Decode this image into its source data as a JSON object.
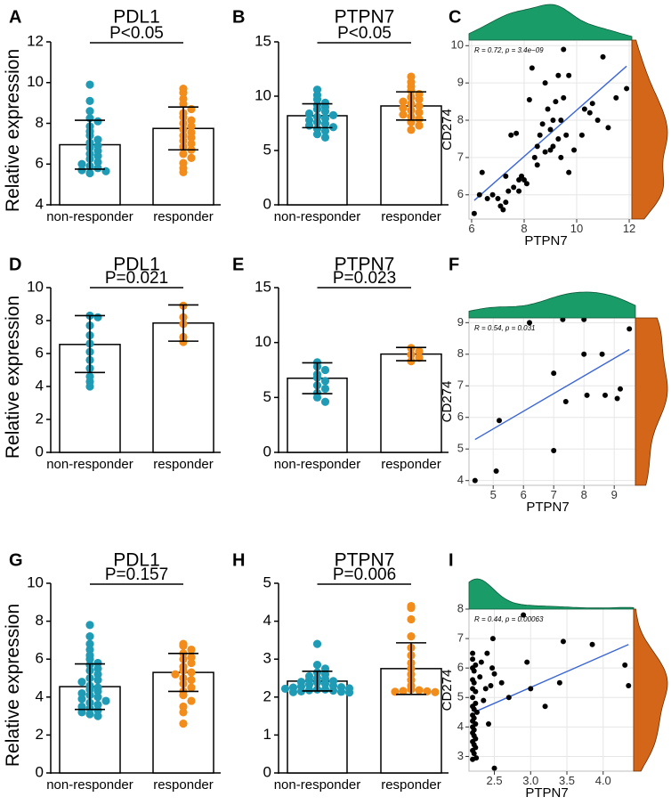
{
  "figure": {
    "colors": {
      "non_responder": "#1f9bb5",
      "responder": "#f28c1b",
      "density_top": "#1a9c69",
      "density_right": "#d4661a",
      "regression_line": "#3a66d6",
      "scatter_point": "#000000",
      "grid": "#e6e6e6"
    },
    "y_axis_label": "Relative expression"
  },
  "chart_data": [
    {
      "panel": "A",
      "type": "bar",
      "title": "PDL1",
      "pvalue": "P<0.05",
      "categories": [
        "non-responder",
        "responder"
      ],
      "ylabel": "Relative expression",
      "ylim": [
        4,
        12
      ],
      "yticks": [
        4,
        6,
        8,
        10,
        12
      ],
      "means": [
        6.95,
        7.75
      ],
      "sd_upper": [
        8.15,
        8.8
      ],
      "sd_lower": [
        5.75,
        6.7
      ],
      "points": [
        [
          9.9,
          9.1,
          8.6,
          8.25,
          8.1,
          7.85,
          7.6,
          7.4,
          7.2,
          7.05,
          6.9,
          6.8,
          6.65,
          6.5,
          6.4,
          6.25,
          6.1,
          6.0,
          5.9,
          5.8,
          5.7,
          5.65,
          5.55
        ],
        [
          9.7,
          9.5,
          9.2,
          8.95,
          8.7,
          8.5,
          8.3,
          8.15,
          8.0,
          7.85,
          7.7,
          7.55,
          7.4,
          7.3,
          7.15,
          7.0,
          6.85,
          6.7,
          6.5,
          6.3,
          6.05,
          5.8,
          5.6
        ]
      ]
    },
    {
      "panel": "B",
      "type": "bar",
      "title": "PTPN7",
      "pvalue": "P<0.05",
      "categories": [
        "non-responder",
        "responder"
      ],
      "ylabel": "",
      "ylim": [
        0,
        15
      ],
      "yticks": [
        0,
        5,
        10,
        15
      ],
      "means": [
        8.2,
        9.1
      ],
      "sd_upper": [
        9.3,
        10.4
      ],
      "sd_lower": [
        7.1,
        7.8
      ],
      "points": [
        [
          10.6,
          10.1,
          9.7,
          9.4,
          9.2,
          9.0,
          8.8,
          8.6,
          8.4,
          8.25,
          8.1,
          7.95,
          7.8,
          7.6,
          7.45,
          7.3,
          7.15,
          7.0,
          6.8,
          6.5,
          6.2
        ],
        [
          11.8,
          11.3,
          10.9,
          10.5,
          10.2,
          9.9,
          9.7,
          9.5,
          9.3,
          9.1,
          8.9,
          8.7,
          8.5,
          8.3,
          8.1,
          7.9,
          7.6,
          7.3,
          6.9
        ]
      ]
    },
    {
      "panel": "C",
      "type": "scatter",
      "xlabel": "PTPN7",
      "ylabel": "CD274",
      "annotation": "R = 0.72, p = 3.4e−09",
      "xlim": [
        5.9,
        12.1
      ],
      "ylim": [
        5.35,
        10.15
      ],
      "xticks": [
        6,
        8,
        10,
        12
      ],
      "yticks": [
        6,
        7,
        8,
        9,
        10
      ],
      "line": {
        "x": [
          6.1,
          11.9
        ],
        "y": [
          5.85,
          9.45
        ]
      },
      "points": [
        [
          6.1,
          5.5
        ],
        [
          6.3,
          6.0
        ],
        [
          6.4,
          6.6
        ],
        [
          6.6,
          5.9
        ],
        [
          6.8,
          6.0
        ],
        [
          7.0,
          5.9
        ],
        [
          7.1,
          5.7
        ],
        [
          7.2,
          5.6
        ],
        [
          7.3,
          6.5
        ],
        [
          7.3,
          5.8
        ],
        [
          7.4,
          6.1
        ],
        [
          7.5,
          7.6
        ],
        [
          7.6,
          6.2
        ],
        [
          7.7,
          7.65
        ],
        [
          7.8,
          6.4
        ],
        [
          7.8,
          6.1
        ],
        [
          7.9,
          6.5
        ],
        [
          8.0,
          6.4
        ],
        [
          8.1,
          6.3
        ],
        [
          8.2,
          8.55
        ],
        [
          8.3,
          9.4
        ],
        [
          8.4,
          7.0
        ],
        [
          8.5,
          7.3
        ],
        [
          8.5,
          6.8
        ],
        [
          8.6,
          7.6
        ],
        [
          8.7,
          7.9
        ],
        [
          8.8,
          7.15
        ],
        [
          8.8,
          9.0
        ],
        [
          8.9,
          8.3
        ],
        [
          9.0,
          7.2
        ],
        [
          9.0,
          7.75
        ],
        [
          9.1,
          8.0
        ],
        [
          9.1,
          7.3
        ],
        [
          9.2,
          8.5
        ],
        [
          9.3,
          9.2
        ],
        [
          9.3,
          7.5
        ],
        [
          9.4,
          8.0
        ],
        [
          9.4,
          7.0
        ],
        [
          9.5,
          9.9
        ],
        [
          9.5,
          8.6
        ],
        [
          9.6,
          7.6
        ],
        [
          9.7,
          9.2
        ],
        [
          9.7,
          6.6
        ],
        [
          9.9,
          7.2
        ],
        [
          10.2,
          7.6
        ],
        [
          10.3,
          8.3
        ],
        [
          10.5,
          8.2
        ],
        [
          10.6,
          8.45
        ],
        [
          10.8,
          8.0
        ],
        [
          11.0,
          9.7
        ],
        [
          11.2,
          7.8
        ],
        [
          11.5,
          8.6
        ],
        [
          11.9,
          8.85
        ]
      ]
    },
    {
      "panel": "D",
      "type": "bar",
      "title": "PDL1",
      "pvalue": "P=0.021",
      "categories": [
        "non-responder",
        "responder"
      ],
      "ylabel": "Relative expression",
      "ylim": [
        0,
        10
      ],
      "yticks": [
        0,
        2,
        4,
        6,
        8,
        10
      ],
      "means": [
        6.55,
        7.85
      ],
      "sd_upper": [
        8.3,
        8.95
      ],
      "sd_lower": [
        4.85,
        6.75
      ],
      "points": [
        [
          8.3,
          8.2,
          7.7,
          7.1,
          6.6,
          6.1,
          5.6,
          5.1,
          4.6,
          4.3,
          4.0
        ],
        [
          8.9,
          8.2,
          7.8,
          7.0,
          6.7
        ]
      ]
    },
    {
      "panel": "E",
      "type": "bar",
      "title": "PTPN7",
      "pvalue": "P=0.023",
      "categories": [
        "non-responder",
        "responder"
      ],
      "ylabel": "",
      "ylim": [
        0,
        15
      ],
      "yticks": [
        0,
        5,
        10,
        15
      ],
      "means": [
        6.75,
        8.95
      ],
      "sd_upper": [
        8.15,
        9.55
      ],
      "sd_lower": [
        5.35,
        8.35
      ],
      "points": [
        [
          8.2,
          7.8,
          7.5,
          7.1,
          6.8,
          6.5,
          6.1,
          5.8,
          5.4,
          5.0,
          4.6
        ],
        [
          9.5,
          9.2,
          8.9,
          8.6,
          8.3
        ]
      ]
    },
    {
      "panel": "F",
      "type": "scatter",
      "xlabel": "PTPN7",
      "ylabel": "CD274",
      "annotation": "R = 0.54, p = 0.031",
      "xlim": [
        4.2,
        9.7
      ],
      "ylim": [
        3.85,
        9.15
      ],
      "xticks": [
        5,
        6,
        7,
        8,
        9
      ],
      "yticks": [
        4,
        5,
        6,
        7,
        8,
        9
      ],
      "line": {
        "x": [
          4.4,
          9.5
        ],
        "y": [
          5.3,
          8.15
        ]
      },
      "points": [
        [
          4.4,
          4.0
        ],
        [
          5.1,
          4.3
        ],
        [
          5.2,
          5.9
        ],
        [
          6.2,
          9.0
        ],
        [
          7.0,
          7.4
        ],
        [
          7.0,
          4.95
        ],
        [
          7.3,
          9.1
        ],
        [
          7.4,
          6.5
        ],
        [
          8.0,
          9.1
        ],
        [
          8.0,
          8.0
        ],
        [
          8.1,
          6.7
        ],
        [
          8.6,
          8.0
        ],
        [
          8.7,
          6.7
        ],
        [
          9.2,
          6.9
        ],
        [
          9.1,
          6.6
        ],
        [
          9.5,
          8.8
        ]
      ]
    },
    {
      "panel": "G",
      "type": "bar",
      "title": "PDL1",
      "pvalue": "P=0.157",
      "categories": [
        "non-responder",
        "responder"
      ],
      "ylabel": "Relative expression",
      "ylim": [
        0,
        10
      ],
      "yticks": [
        0,
        2,
        4,
        6,
        8,
        10
      ],
      "means": [
        4.55,
        5.3
      ],
      "sd_upper": [
        5.75,
        6.3
      ],
      "sd_lower": [
        3.35,
        4.3
      ],
      "points": [
        [
          7.8,
          7.2,
          6.8,
          6.5,
          6.2,
          6.0,
          5.8,
          5.7,
          5.5,
          5.4,
          5.2,
          5.0,
          4.9,
          4.8,
          4.6,
          4.5,
          4.4,
          4.3,
          4.2,
          4.1,
          4.0,
          3.9,
          3.8,
          3.7,
          3.6,
          3.5,
          3.4,
          3.3,
          3.2,
          3.1,
          3.0
        ],
        [
          6.8,
          6.7,
          6.5,
          6.3,
          6.1,
          6.0,
          5.8,
          5.6,
          5.4,
          5.3,
          5.2,
          5.0,
          4.9,
          4.7,
          4.5,
          4.3,
          4.1,
          3.8,
          3.5,
          3.2,
          2.6
        ]
      ]
    },
    {
      "panel": "H",
      "type": "bar",
      "title": "PTPN7",
      "pvalue": "P=0.006",
      "categories": [
        "non-responder",
        "responder"
      ],
      "ylabel": "",
      "ylim": [
        0,
        5
      ],
      "yticks": [
        0,
        1,
        2,
        3,
        4,
        5
      ],
      "means": [
        2.42,
        2.75
      ],
      "sd_upper": [
        2.68,
        3.43
      ],
      "sd_lower": [
        2.16,
        2.07
      ],
      "points": [
        [
          3.4,
          2.85,
          2.75,
          2.65,
          2.6,
          2.55,
          2.5,
          2.48,
          2.45,
          2.42,
          2.4,
          2.38,
          2.35,
          2.33,
          2.3,
          2.28,
          2.26,
          2.25,
          2.23,
          2.22,
          2.2,
          2.2,
          2.18,
          2.17,
          2.15,
          2.14,
          2.13,
          2.12
        ],
        [
          4.4,
          4.35,
          4.05,
          3.6,
          3.3,
          3.1,
          2.9,
          2.75,
          2.6,
          2.45,
          2.3,
          2.2,
          2.18,
          2.16,
          2.15,
          2.14,
          2.13
        ]
      ]
    },
    {
      "panel": "I",
      "type": "scatter",
      "xlabel": "PTPN7",
      "ylabel": "CD274",
      "annotation": "R = 0.44, p = 0.00063",
      "xlim": [
        2.15,
        4.42
      ],
      "ylim": [
        2.5,
        8.0
      ],
      "xticks": [
        2.5,
        3.0,
        3.5,
        4.0
      ],
      "yticks": [
        3,
        4,
        5,
        6,
        7,
        8
      ],
      "xtick_labels": [
        "2.5",
        "3.0",
        "3.5",
        "4.0"
      ],
      "line": {
        "x": [
          2.22,
          4.35
        ],
        "y": [
          4.5,
          6.8
        ]
      },
      "points": [
        [
          2.2,
          2.9
        ],
        [
          2.2,
          3.2
        ],
        [
          2.2,
          3.5
        ],
        [
          2.2,
          3.8
        ],
        [
          2.2,
          4.0
        ],
        [
          2.2,
          4.2
        ],
        [
          2.2,
          4.4
        ],
        [
          2.2,
          4.7
        ],
        [
          2.2,
          5.0
        ],
        [
          2.2,
          5.3
        ],
        [
          2.2,
          5.6
        ],
        [
          2.2,
          6.0
        ],
        [
          2.2,
          6.3
        ],
        [
          2.2,
          6.5
        ],
        [
          2.22,
          3.1
        ],
        [
          2.22,
          3.4
        ],
        [
          2.22,
          3.7
        ],
        [
          2.22,
          3.9
        ],
        [
          2.22,
          4.3
        ],
        [
          2.22,
          4.6
        ],
        [
          2.22,
          5.5
        ],
        [
          2.22,
          5.9
        ],
        [
          2.24,
          3.3
        ],
        [
          2.24,
          3.6
        ],
        [
          2.24,
          4.1
        ],
        [
          2.24,
          4.8
        ],
        [
          2.24,
          5.2
        ],
        [
          2.24,
          6.1
        ],
        [
          2.25,
          2.95
        ],
        [
          2.26,
          4.5
        ],
        [
          2.3,
          5.7
        ],
        [
          2.32,
          6.2
        ],
        [
          2.35,
          4.9
        ],
        [
          2.38,
          5.3
        ],
        [
          2.4,
          6.5
        ],
        [
          2.42,
          4.1
        ],
        [
          2.45,
          5.4
        ],
        [
          2.47,
          6.0
        ],
        [
          2.48,
          7.0
        ],
        [
          2.5,
          5.8
        ],
        [
          2.5,
          2.6
        ],
        [
          2.6,
          5.5
        ],
        [
          2.7,
          5.0
        ],
        [
          2.9,
          7.8
        ],
        [
          2.95,
          6.2
        ],
        [
          3.0,
          5.3
        ],
        [
          3.2,
          4.7
        ],
        [
          3.4,
          5.5
        ],
        [
          3.45,
          6.9
        ],
        [
          3.85,
          6.8
        ],
        [
          4.3,
          6.1
        ],
        [
          4.35,
          5.4
        ]
      ]
    }
  ]
}
